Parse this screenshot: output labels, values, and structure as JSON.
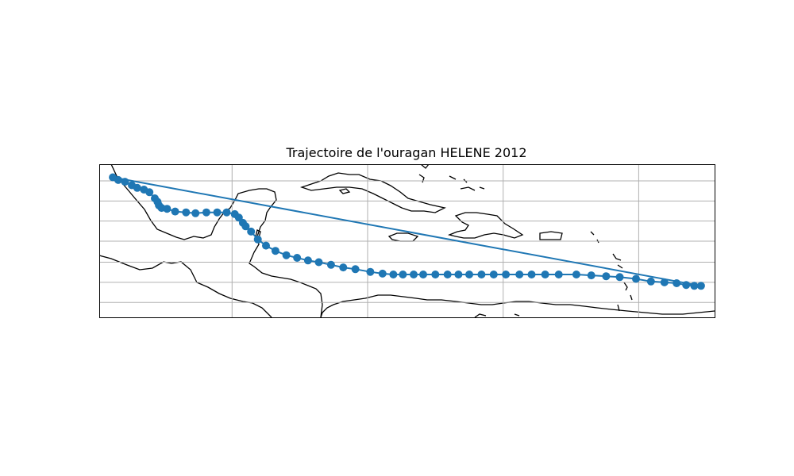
{
  "title": "Trajectoire de l'ouragan HELENE 2012",
  "colors": {
    "track": "#1f77b4",
    "coast": "#000000",
    "grid": "#b0b0b0",
    "frame": "#000000"
  },
  "chart_data": {
    "type": "line",
    "title": "Trajectoire de l'ouragan HELENE 2012",
    "grid": true,
    "ticks_labelled": false,
    "xlim": [
      -99.2,
      -53.8
    ],
    "ylim": [
      7.9,
      25.4
    ],
    "gridlines": {
      "lon": [
        -89.4,
        -79.4,
        -69.4,
        -59.4
      ],
      "lat": [
        9.6,
        11.9,
        14.2,
        16.6,
        18.9,
        21.2,
        23.5
      ]
    },
    "track": [
      {
        "lon": -98.2,
        "lat": 23.9
      },
      {
        "lon": -97.8,
        "lat": 23.6
      },
      {
        "lon": -97.3,
        "lat": 23.4
      },
      {
        "lon": -96.8,
        "lat": 23.0
      },
      {
        "lon": -96.4,
        "lat": 22.7
      },
      {
        "lon": -95.9,
        "lat": 22.5
      },
      {
        "lon": -95.5,
        "lat": 22.2
      },
      {
        "lon": -95.1,
        "lat": 21.5
      },
      {
        "lon": -94.9,
        "lat": 21.1
      },
      {
        "lon": -94.8,
        "lat": 20.7
      },
      {
        "lon": -94.6,
        "lat": 20.4
      },
      {
        "lon": -94.2,
        "lat": 20.3
      },
      {
        "lon": -93.6,
        "lat": 20.0
      },
      {
        "lon": -92.8,
        "lat": 19.9
      },
      {
        "lon": -92.1,
        "lat": 19.8
      },
      {
        "lon": -91.3,
        "lat": 19.9
      },
      {
        "lon": -90.5,
        "lat": 19.9
      },
      {
        "lon": -89.8,
        "lat": 19.9
      },
      {
        "lon": -89.2,
        "lat": 19.7
      },
      {
        "lon": -88.9,
        "lat": 19.3
      },
      {
        "lon": -88.6,
        "lat": 18.7
      },
      {
        "lon": -88.4,
        "lat": 18.3
      },
      {
        "lon": -88.0,
        "lat": 17.7
      },
      {
        "lon": -87.5,
        "lat": 16.8
      },
      {
        "lon": -86.9,
        "lat": 16.1
      },
      {
        "lon": -86.2,
        "lat": 15.5
      },
      {
        "lon": -85.4,
        "lat": 15.0
      },
      {
        "lon": -84.6,
        "lat": 14.7
      },
      {
        "lon": -83.8,
        "lat": 14.4
      },
      {
        "lon": -83.0,
        "lat": 14.2
      },
      {
        "lon": -82.1,
        "lat": 13.9
      },
      {
        "lon": -81.2,
        "lat": 13.6
      },
      {
        "lon": -80.3,
        "lat": 13.4
      },
      {
        "lon": -79.2,
        "lat": 13.1
      },
      {
        "lon": -78.3,
        "lat": 12.9
      },
      {
        "lon": -77.5,
        "lat": 12.8
      },
      {
        "lon": -76.8,
        "lat": 12.8
      },
      {
        "lon": -76.0,
        "lat": 12.8
      },
      {
        "lon": -75.3,
        "lat": 12.8
      },
      {
        "lon": -74.4,
        "lat": 12.8
      },
      {
        "lon": -73.5,
        "lat": 12.8
      },
      {
        "lon": -72.7,
        "lat": 12.8
      },
      {
        "lon": -71.9,
        "lat": 12.8
      },
      {
        "lon": -71.0,
        "lat": 12.8
      },
      {
        "lon": -70.1,
        "lat": 12.8
      },
      {
        "lon": -69.2,
        "lat": 12.8
      },
      {
        "lon": -68.2,
        "lat": 12.8
      },
      {
        "lon": -67.3,
        "lat": 12.8
      },
      {
        "lon": -66.3,
        "lat": 12.8
      },
      {
        "lon": -65.3,
        "lat": 12.8
      },
      {
        "lon": -64.0,
        "lat": 12.8
      },
      {
        "lon": -62.9,
        "lat": 12.7
      },
      {
        "lon": -61.8,
        "lat": 12.6
      },
      {
        "lon": -60.8,
        "lat": 12.5
      },
      {
        "lon": -59.6,
        "lat": 12.3
      },
      {
        "lon": -58.5,
        "lat": 12.0
      },
      {
        "lon": -57.5,
        "lat": 11.9
      },
      {
        "lon": -56.6,
        "lat": 11.8
      },
      {
        "lon": -55.9,
        "lat": 11.6
      },
      {
        "lon": -55.3,
        "lat": 11.5
      },
      {
        "lon": -54.8,
        "lat": 11.5
      }
    ]
  }
}
